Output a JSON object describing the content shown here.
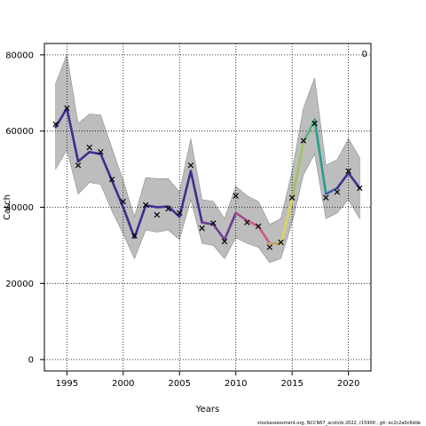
{
  "chart_data": {
    "type": "line",
    "xlabel": "Years",
    "ylabel": "Catch",
    "corner_label": "0",
    "xlim": [
      1993,
      2022
    ],
    "ylim": [
      -3000,
      83000
    ],
    "x_ticks": [
      1995,
      2000,
      2005,
      2010,
      2015,
      2020
    ],
    "y_ticks": [
      0,
      20000,
      40000,
      60000,
      80000
    ],
    "grid": true,
    "band_color": "#bdbdbd",
    "years": [
      1994,
      1995,
      1996,
      1997,
      1998,
      1999,
      2000,
      2001,
      2002,
      2003,
      2004,
      2005,
      2006,
      2007,
      2008,
      2009,
      2010,
      2011,
      2012,
      2013,
      2014,
      2015,
      2016,
      2017,
      2018,
      2019,
      2020,
      2021
    ],
    "fit": [
      61000,
      66000,
      52000,
      54500,
      54000,
      47000,
      40000,
      32000,
      40500,
      40000,
      40200,
      37500,
      49500,
      36000,
      35500,
      31500,
      38500,
      36500,
      35000,
      30500,
      30500,
      42000,
      57000,
      63000,
      43500,
      45000,
      49000,
      45000
    ],
    "lower": [
      50000,
      55000,
      43500,
      46500,
      46000,
      39000,
      33000,
      26500,
      34000,
      33500,
      34000,
      31500,
      42000,
      30500,
      30000,
      26500,
      32000,
      30500,
      29500,
      25500,
      26500,
      36000,
      48500,
      54000,
      37000,
      38500,
      42000,
      37000
    ],
    "upper": [
      72500,
      80000,
      62000,
      64500,
      64200,
      55500,
      47000,
      37500,
      47800,
      47500,
      47500,
      44000,
      58000,
      42000,
      41500,
      37000,
      45500,
      43000,
      41500,
      35500,
      37000,
      49500,
      66000,
      74000,
      51000,
      52500,
      58000,
      53000
    ],
    "line_colors": [
      "#3f2d8e",
      "#3f2d8e",
      "#3f2d8e",
      "#3f2d8e",
      "#3f2d8e",
      "#3f2d8e",
      "#3f2d8e",
      "#3f2d8e",
      "#3f2d8e",
      "#3f2d8e",
      "#3f2d8e",
      "#3f2d8e",
      "#3f2d8e",
      "#6d3d93",
      "#6d3d93",
      "#6d3d93",
      "#a64a8e",
      "#c75e78",
      "#c75e78",
      "#b9a860",
      "#d9d65e",
      "#a2c45f",
      "#5bb478",
      "#2a9c8c",
      "#3f5ea6",
      "#3f2d8e",
      "#3f2d8e"
    ],
    "observed": [
      {
        "year": 1994,
        "value": 61800
      },
      {
        "year": 1995,
        "value": 66000
      },
      {
        "year": 1996,
        "value": 51000
      },
      {
        "year": 1997,
        "value": 55700
      },
      {
        "year": 1998,
        "value": 54500
      },
      {
        "year": 1999,
        "value": 47300
      },
      {
        "year": 2000,
        "value": 41500
      },
      {
        "year": 2001,
        "value": 32500
      },
      {
        "year": 2002,
        "value": 40600
      },
      {
        "year": 2003,
        "value": 38000
      },
      {
        "year": 2004,
        "value": 39600
      },
      {
        "year": 2005,
        "value": 38500
      },
      {
        "year": 2006,
        "value": 51000
      },
      {
        "year": 2007,
        "value": 34500
      },
      {
        "year": 2008,
        "value": 35800
      },
      {
        "year": 2009,
        "value": 31000
      },
      {
        "year": 2010,
        "value": 43000
      },
      {
        "year": 2011,
        "value": 36000
      },
      {
        "year": 2012,
        "value": 35000
      },
      {
        "year": 2013,
        "value": 29500
      },
      {
        "year": 2014,
        "value": 30800
      },
      {
        "year": 2015,
        "value": 42500
      },
      {
        "year": 2016,
        "value": 57500
      },
      {
        "year": 2017,
        "value": 62000
      },
      {
        "year": 2018,
        "value": 42500
      },
      {
        "year": 2019,
        "value": 44000
      },
      {
        "year": 2020,
        "value": 49500
      },
      {
        "year": 2021,
        "value": 45000
      }
    ]
  },
  "footer_text": "stockassessment.org,  NCCN67_acots\\b  2022,  r15900 ,  git:  ec2c2a0c6dde"
}
